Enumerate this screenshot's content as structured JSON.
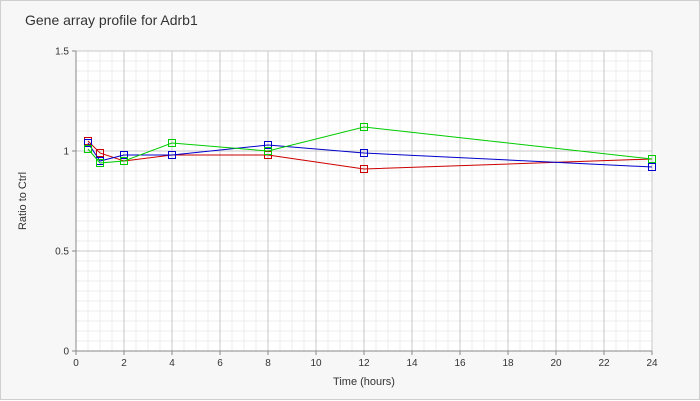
{
  "chart_data": {
    "type": "line",
    "title": "Gene array profile for Adrb1",
    "xlabel": "Time (hours)",
    "ylabel": "Ratio to Ctrl",
    "xlim": [
      0,
      24
    ],
    "ylim": [
      0,
      1.5
    ],
    "x_ticks": [
      0,
      2,
      4,
      6,
      8,
      10,
      12,
      14,
      16,
      18,
      20,
      22,
      24
    ],
    "y_ticks": [
      0,
      0.5,
      1,
      1.5
    ],
    "y_tick_labels": [
      "0",
      "0.5",
      "1",
      "1.5"
    ],
    "grid": true,
    "legend": "none",
    "series": [
      {
        "color": "#cc0000",
        "x": [
          0.5,
          1,
          2,
          4,
          8,
          12,
          24
        ],
        "values": [
          1.05,
          0.99,
          0.95,
          0.98,
          0.98,
          0.91,
          0.96
        ]
      },
      {
        "color": "#0000cc",
        "x": [
          0.5,
          1,
          2,
          4,
          8,
          12,
          24
        ],
        "values": [
          1.04,
          0.95,
          0.98,
          0.98,
          1.03,
          0.99,
          0.92
        ]
      },
      {
        "color": "#00cc00",
        "x": [
          0.5,
          1,
          2,
          4,
          8,
          12,
          24
        ],
        "values": [
          1.01,
          0.94,
          0.95,
          1.04,
          1.0,
          1.12,
          0.96
        ]
      }
    ]
  }
}
